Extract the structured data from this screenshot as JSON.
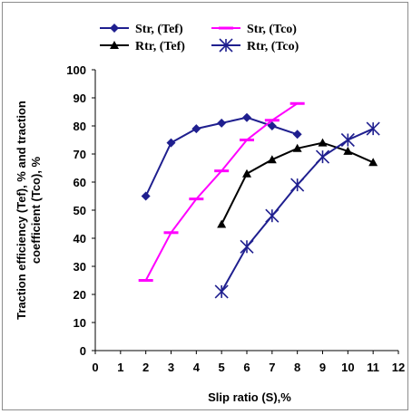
{
  "chart_data": {
    "type": "line",
    "title": "",
    "xlabel": "Slip ratio (S),%",
    "ylabel_lines": [
      "Traction efficiency  (Tef), % and traction",
      "coefficient  (Tco), %"
    ],
    "xlim": [
      0,
      12
    ],
    "ylim": [
      0,
      100
    ],
    "xticks": [
      0,
      1,
      2,
      3,
      4,
      5,
      6,
      7,
      8,
      9,
      10,
      11,
      12
    ],
    "yticks": [
      0,
      10,
      20,
      30,
      40,
      50,
      60,
      70,
      80,
      90,
      100
    ],
    "grid": false,
    "legend_position": "top",
    "series": [
      {
        "name": "Str, (Tef)",
        "color": "#1f1f8f",
        "marker": "diamond",
        "x": [
          2,
          3,
          4,
          5,
          6,
          7,
          8
        ],
        "y": [
          55,
          74,
          79,
          81,
          83,
          80,
          77
        ]
      },
      {
        "name": "Str, (Tco)",
        "color": "#ff00ff",
        "marker": "dash",
        "x": [
          2,
          3,
          4,
          5,
          6,
          7,
          8
        ],
        "y": [
          25,
          42,
          54,
          64,
          75,
          82,
          88
        ]
      },
      {
        "name": "Rtr, (Tef)",
        "color": "#000000",
        "marker": "triangle",
        "x": [
          5,
          6,
          7,
          8,
          9,
          10,
          11
        ],
        "y": [
          45,
          63,
          68,
          72,
          74,
          71,
          67
        ]
      },
      {
        "name": "Rtr, (Tco)",
        "color": "#1f1f8f",
        "marker": "star",
        "x": [
          5,
          6,
          7,
          8,
          9,
          10,
          11
        ],
        "y": [
          21,
          37,
          48,
          59,
          69,
          75,
          79
        ]
      }
    ]
  }
}
